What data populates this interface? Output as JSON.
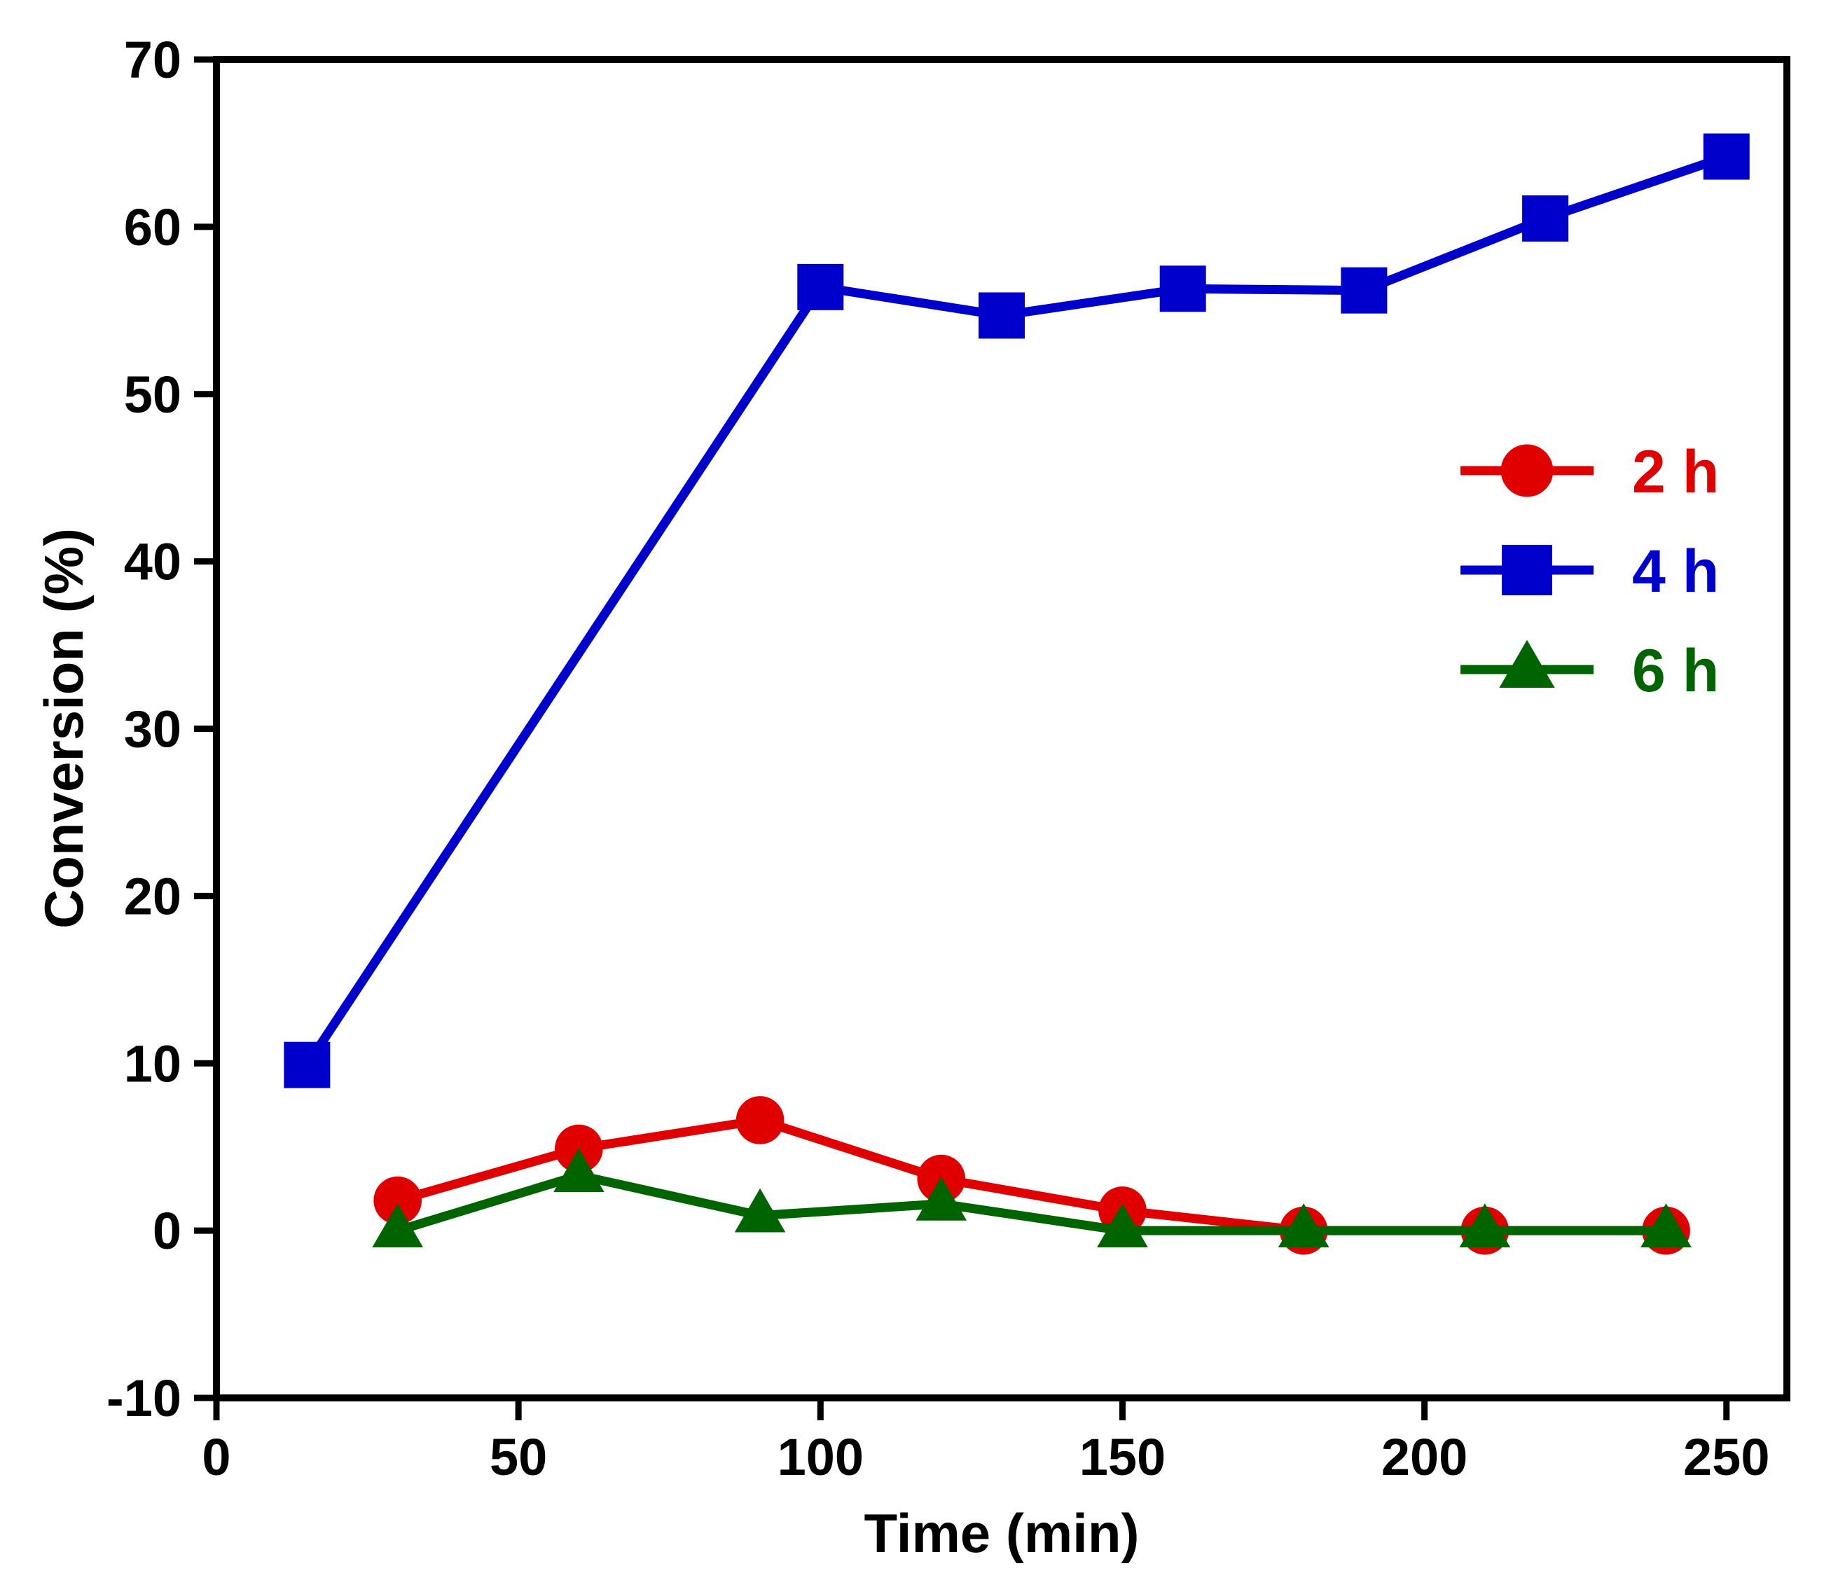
{
  "chart_data": {
    "type": "line",
    "title": "",
    "xlabel": "Time (min)",
    "ylabel": "Conversion (%)",
    "xlim": [
      0,
      260
    ],
    "ylim": [
      -10,
      70
    ],
    "xticks": [
      0,
      50,
      100,
      150,
      200,
      250
    ],
    "xtick_labels": [
      "0",
      "50",
      "100",
      "150",
      "200",
      "250"
    ],
    "yticks": [
      -10,
      0,
      10,
      20,
      30,
      40,
      50,
      60,
      70
    ],
    "ytick_labels": [
      "-10",
      "0",
      "10",
      "20",
      "30",
      "40",
      "50",
      "60",
      "70"
    ],
    "grid": false,
    "legend_position": "right",
    "series": [
      {
        "name": "2 h",
        "color": "#e00000",
        "marker": "circle",
        "x": [
          30,
          60,
          90,
          120,
          150,
          180,
          210,
          240
        ],
        "y": [
          1.8,
          4.9,
          6.6,
          3.1,
          1.2,
          0.0,
          0.0,
          0.0
        ]
      },
      {
        "name": "4 h",
        "color": "#0000cc",
        "marker": "square",
        "x": [
          15,
          100,
          130,
          160,
          190,
          220,
          250
        ],
        "y": [
          9.9,
          56.4,
          54.7,
          56.3,
          56.2,
          60.5,
          64.2
        ]
      },
      {
        "name": "6 h",
        "color": "#006400",
        "marker": "triangle",
        "x": [
          30,
          60,
          90,
          120,
          150,
          180,
          210,
          240
        ],
        "y": [
          0.0,
          3.3,
          0.9,
          1.6,
          0.0,
          0.0,
          0.0,
          0.0
        ]
      }
    ]
  }
}
